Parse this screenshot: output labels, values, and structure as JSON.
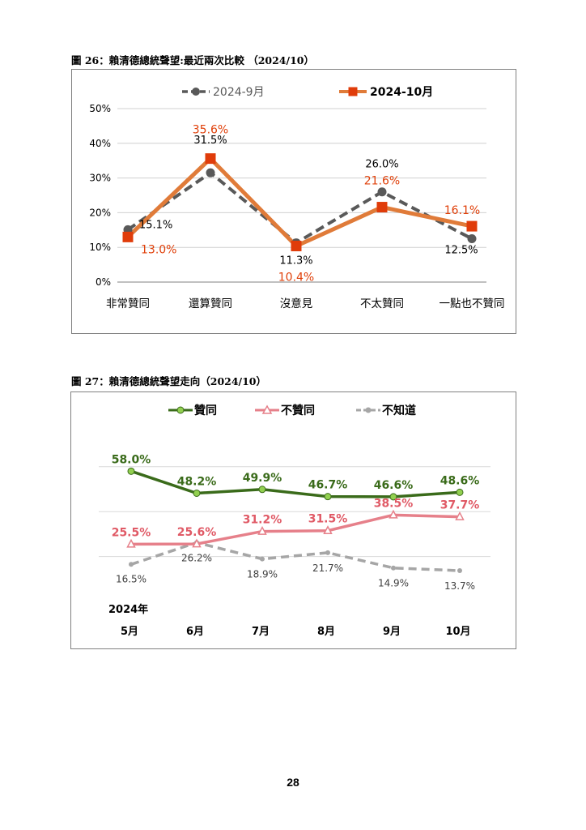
{
  "figure26": {
    "caption": "圖 26：賴清德總統聲望:最近兩次比較 （2024/10）",
    "chart_data": {
      "type": "line",
      "categories": [
        "非常贊同",
        "還算贊同",
        "沒意見",
        "不太贊同",
        "一點也不贊同"
      ],
      "ylim": [
        0,
        50
      ],
      "yticks": [
        "0%",
        "10%",
        "20%",
        "30%",
        "40%",
        "50%"
      ],
      "grid": true,
      "legend": "top",
      "series": [
        {
          "name": "2024-9月",
          "values": [
            15.1,
            31.5,
            11.3,
            26.0,
            12.5
          ],
          "labels": [
            "15.1%",
            "31.5%",
            "11.3%",
            "26.0%",
            "12.5%"
          ],
          "color": "#595959",
          "style": "dashed",
          "marker": "circle"
        },
        {
          "name": "2024-10月",
          "values": [
            13.0,
            35.6,
            10.4,
            21.6,
            16.1
          ],
          "labels": [
            "13.0%",
            "35.6%",
            "10.4%",
            "21.6%",
            "16.1%"
          ],
          "color": "#e07b39",
          "marker_color": "#e03c0a",
          "label_color": "#e0400a",
          "style": "solid",
          "marker": "square"
        }
      ]
    }
  },
  "figure27": {
    "caption": "圖 27：賴清德總統聲望走向（2024/10）",
    "year_label": "2024年",
    "chart_data": {
      "type": "line",
      "categories": [
        "5月",
        "6月",
        "7月",
        "8月",
        "9月",
        "10月"
      ],
      "ylim": [
        0,
        70
      ],
      "grid": true,
      "legend": "top",
      "series": [
        {
          "name": "贊同",
          "values": [
            58.0,
            48.2,
            49.9,
            46.7,
            46.6,
            48.6
          ],
          "labels": [
            "58.0%",
            "48.2%",
            "49.9%",
            "46.7%",
            "46.6%",
            "48.6%"
          ],
          "color": "#3a6b1a",
          "marker_color": "#92d050",
          "style": "solid",
          "marker": "circle"
        },
        {
          "name": "不贊同",
          "values": [
            25.5,
            25.6,
            31.2,
            31.5,
            38.5,
            37.7
          ],
          "labels": [
            "25.5%",
            "25.6%",
            "31.2%",
            "31.5%",
            "38.5%",
            "37.7%"
          ],
          "color": "#e6808a",
          "label_color": "#e05a66",
          "style": "solid",
          "marker": "triangle"
        },
        {
          "name": "不知道",
          "values": [
            16.5,
            26.2,
            18.9,
            21.7,
            14.9,
            13.7
          ],
          "labels": [
            "16.5%",
            "26.2%",
            "18.9%",
            "21.7%",
            "14.9%",
            "13.7%"
          ],
          "color": "#a6a6a6",
          "label_color": "#404040",
          "style": "dashed",
          "marker": "circle"
        }
      ]
    }
  },
  "page_number": "28"
}
